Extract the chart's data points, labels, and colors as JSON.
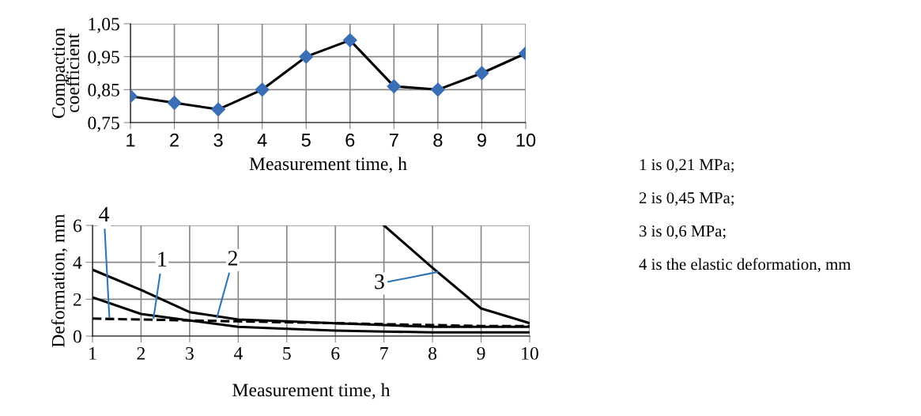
{
  "chart_data": [
    {
      "type": "line",
      "xlabel": "Measurement time, h",
      "ylabel": "Compaction coefficient",
      "x": [
        1,
        2,
        3,
        4,
        5,
        6,
        7,
        8,
        9,
        10
      ],
      "series": [
        {
          "color": "#000000",
          "colors": [
            "#3a6fb6",
            "#3a6fb6",
            "#3a6fb6",
            "#3a6fb6",
            "#3a6fb6",
            "#3a6fb6",
            "#3a6fb6",
            "#3a6fb6",
            "#3a6fb6",
            "#3a6fb6"
          ],
          "values": [
            0.83,
            0.81,
            0.79,
            0.85,
            0.95,
            1.0,
            0.86,
            0.85,
            0.9,
            0.96
          ]
        }
      ],
      "marker": "diamond",
      "xlim": [
        1,
        10
      ],
      "xticks": [
        1,
        2,
        3,
        4,
        5,
        6,
        7,
        8,
        9,
        10
      ],
      "ylim": [
        0.75,
        1.05
      ],
      "yticks": [
        {
          "value": 0.75,
          "label": "0,75"
        },
        {
          "value": 0.85,
          "label": "0,85"
        },
        {
          "value": 0.95,
          "label": "0,95"
        },
        {
          "value": 1.05,
          "label": "1,05"
        }
      ],
      "grid": true,
      "legend": false
    },
    {
      "type": "line",
      "xlabel": "Measurement time, h",
      "ylabel": "Deformation, mm",
      "x": [
        1,
        2,
        3,
        4,
        5,
        6,
        7,
        8,
        9,
        10
      ],
      "series": [
        {
          "name": "1",
          "color": "#000000",
          "line_style": "solid",
          "values": [
            2.1,
            1.2,
            0.85,
            0.5,
            0.4,
            0.3,
            0.25,
            0.2,
            0.2,
            0.2
          ]
        },
        {
          "name": "2",
          "color": "#000000",
          "line_style": "solid",
          "values": [
            3.6,
            2.5,
            1.3,
            0.9,
            0.8,
            0.7,
            0.6,
            0.5,
            0.5,
            0.5
          ]
        },
        {
          "name": "3",
          "color": "#000000",
          "line_style": "solid",
          "values": [
            null,
            null,
            null,
            null,
            null,
            null,
            6.0,
            3.7,
            1.5,
            0.7
          ]
        },
        {
          "name": "4",
          "color": "#000000",
          "line_style": "dashed",
          "values": [
            0.95,
            0.9,
            0.85,
            0.8,
            0.75,
            0.7,
            0.65,
            0.6,
            0.55,
            0.55
          ]
        }
      ],
      "marker": "none",
      "xlim": [
        1,
        10
      ],
      "xticks": [
        1,
        2,
        3,
        4,
        5,
        6,
        7,
        8,
        9,
        10
      ],
      "ylim": [
        0,
        6
      ],
      "yticks": [
        0,
        2,
        4,
        6
      ],
      "grid": true,
      "legend": false,
      "annotations": [
        "1 is 0,21 MPa;",
        "2 is 0,45 MPa;",
        "3 is 0,6 MPa;",
        "4 is the elastic deformation, mm"
      ]
    }
  ]
}
